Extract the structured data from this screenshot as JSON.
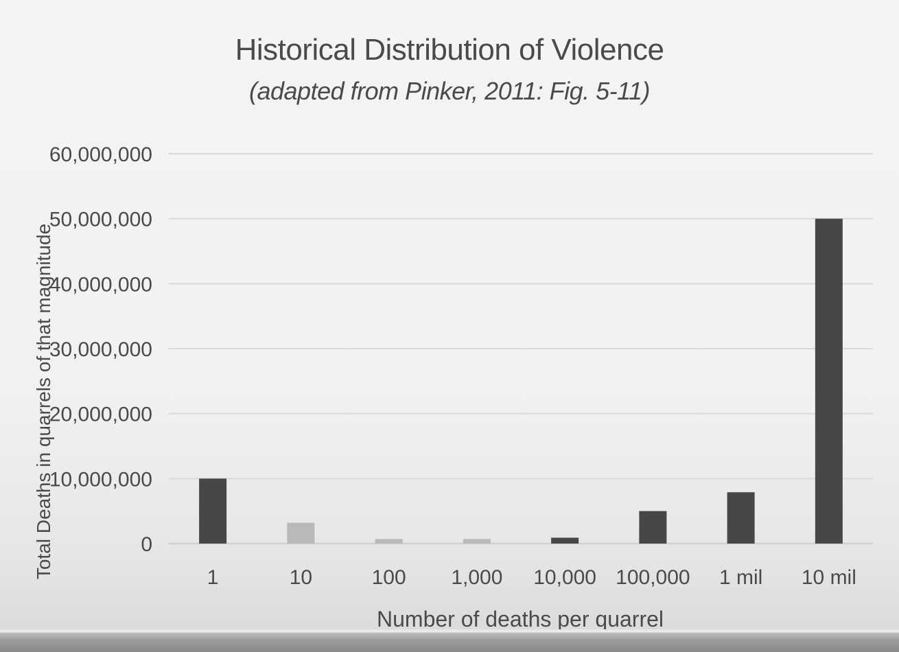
{
  "slide": {
    "title": "Historical Distribution of Violence",
    "subtitle": "(adapted from Pinker, 2011: Fig. 5-11)"
  },
  "chart_data": {
    "type": "bar",
    "title": "Historical Distribution of Violence",
    "subtitle": "(adapted from Pinker, 2011: Fig. 5-11)",
    "xlabel": "Number of deaths per quarrel",
    "ylabel": "Total Deaths in quarrels of that magnitude",
    "categories": [
      "1",
      "10",
      "100",
      "1,000",
      "10,000",
      "100,000",
      "1 mil",
      "10 mil"
    ],
    "values": [
      10000000,
      3200000,
      700000,
      700000,
      900000,
      5000000,
      7900000,
      50000000
    ],
    "ylim": [
      0,
      60000000
    ],
    "yticks": [
      0,
      10000000,
      20000000,
      30000000,
      40000000,
      50000000,
      60000000
    ],
    "ytick_labels": [
      "0",
      "10,000,000",
      "20,000,000",
      "30,000,000",
      "40,000,000",
      "50,000,000",
      "60,000,000"
    ],
    "grid": true,
    "legend": "none",
    "bar_colors": [
      "#474747",
      "#b9b9b9",
      "#b9b9b9",
      "#b9b9b9",
      "#474747",
      "#474747",
      "#474747",
      "#474747"
    ],
    "grid_color": "#d9d9d9",
    "text_color": "#4a4a4a"
  }
}
